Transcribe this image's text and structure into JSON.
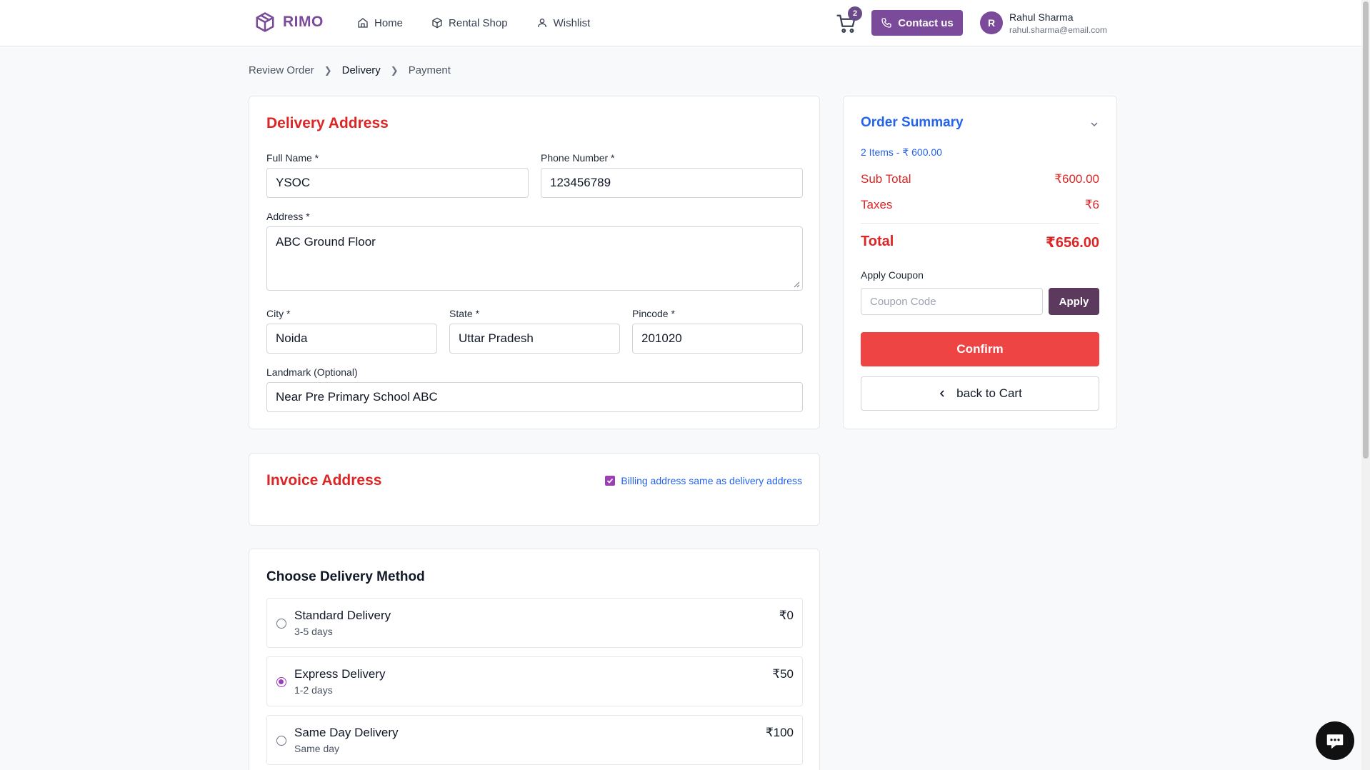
{
  "brand": {
    "name": "RIMO",
    "accent": "#7b4a9a"
  },
  "nav": {
    "items": [
      {
        "label": "Home",
        "icon": "home-icon"
      },
      {
        "label": "Rental Shop",
        "icon": "box-icon"
      },
      {
        "label": "Wishlist",
        "icon": "user-icon"
      }
    ]
  },
  "header": {
    "cart_count": "2",
    "contact_label": "Contact us",
    "user": {
      "initial": "R",
      "name": "Rahul Sharma",
      "email": "rahul.sharma@email.com"
    }
  },
  "breadcrumb": {
    "items": [
      "Review Order",
      "Delivery",
      "Payment"
    ],
    "active": "Delivery"
  },
  "delivery_address": {
    "title": "Delivery Address",
    "full_name": {
      "label": "Full Name *",
      "value": "YSOC"
    },
    "phone": {
      "label": "Phone Number *",
      "value": "123456789"
    },
    "address": {
      "label": "Address *",
      "value": "ABC Ground Floor"
    },
    "city": {
      "label": "City *",
      "value": "Noida"
    },
    "state": {
      "label": "State *",
      "value": "Uttar Pradesh"
    },
    "pincode": {
      "label": "Pincode *",
      "value": "201020"
    },
    "landmark": {
      "label": "Landmark (Optional)",
      "value": "Near Pre Primary School ABC"
    }
  },
  "invoice_address": {
    "title": "Invoice Address",
    "same_as_delivery_label": "Billing address same as delivery address",
    "same_as_delivery_checked": true
  },
  "delivery_method": {
    "title": "Choose Delivery Method",
    "options": [
      {
        "name": "Standard Delivery",
        "time": "3-5 days",
        "price": "₹0",
        "selected": false
      },
      {
        "name": "Express Delivery",
        "time": "1-2 days",
        "price": "₹50",
        "selected": true
      },
      {
        "name": "Same Day Delivery",
        "time": "Same day",
        "price": "₹100",
        "selected": false
      }
    ]
  },
  "order_summary": {
    "title": "Order Summary",
    "items_text": "2 Items - ₹ 600.00",
    "sub_total_label": "Sub Total",
    "sub_total_value": "₹600.00",
    "taxes_label": "Taxes",
    "taxes_value": "₹6",
    "total_label": "Total",
    "total_value": "₹656.00",
    "coupon_label": "Apply Coupon",
    "coupon_placeholder": "Coupon Code",
    "apply_label": "Apply",
    "confirm_label": "Confirm",
    "back_label": "back to Cart"
  },
  "colors": {
    "danger": "#dc2626",
    "link": "#2563eb",
    "confirm": "#ef4444",
    "apply": "#5b3a5e"
  }
}
